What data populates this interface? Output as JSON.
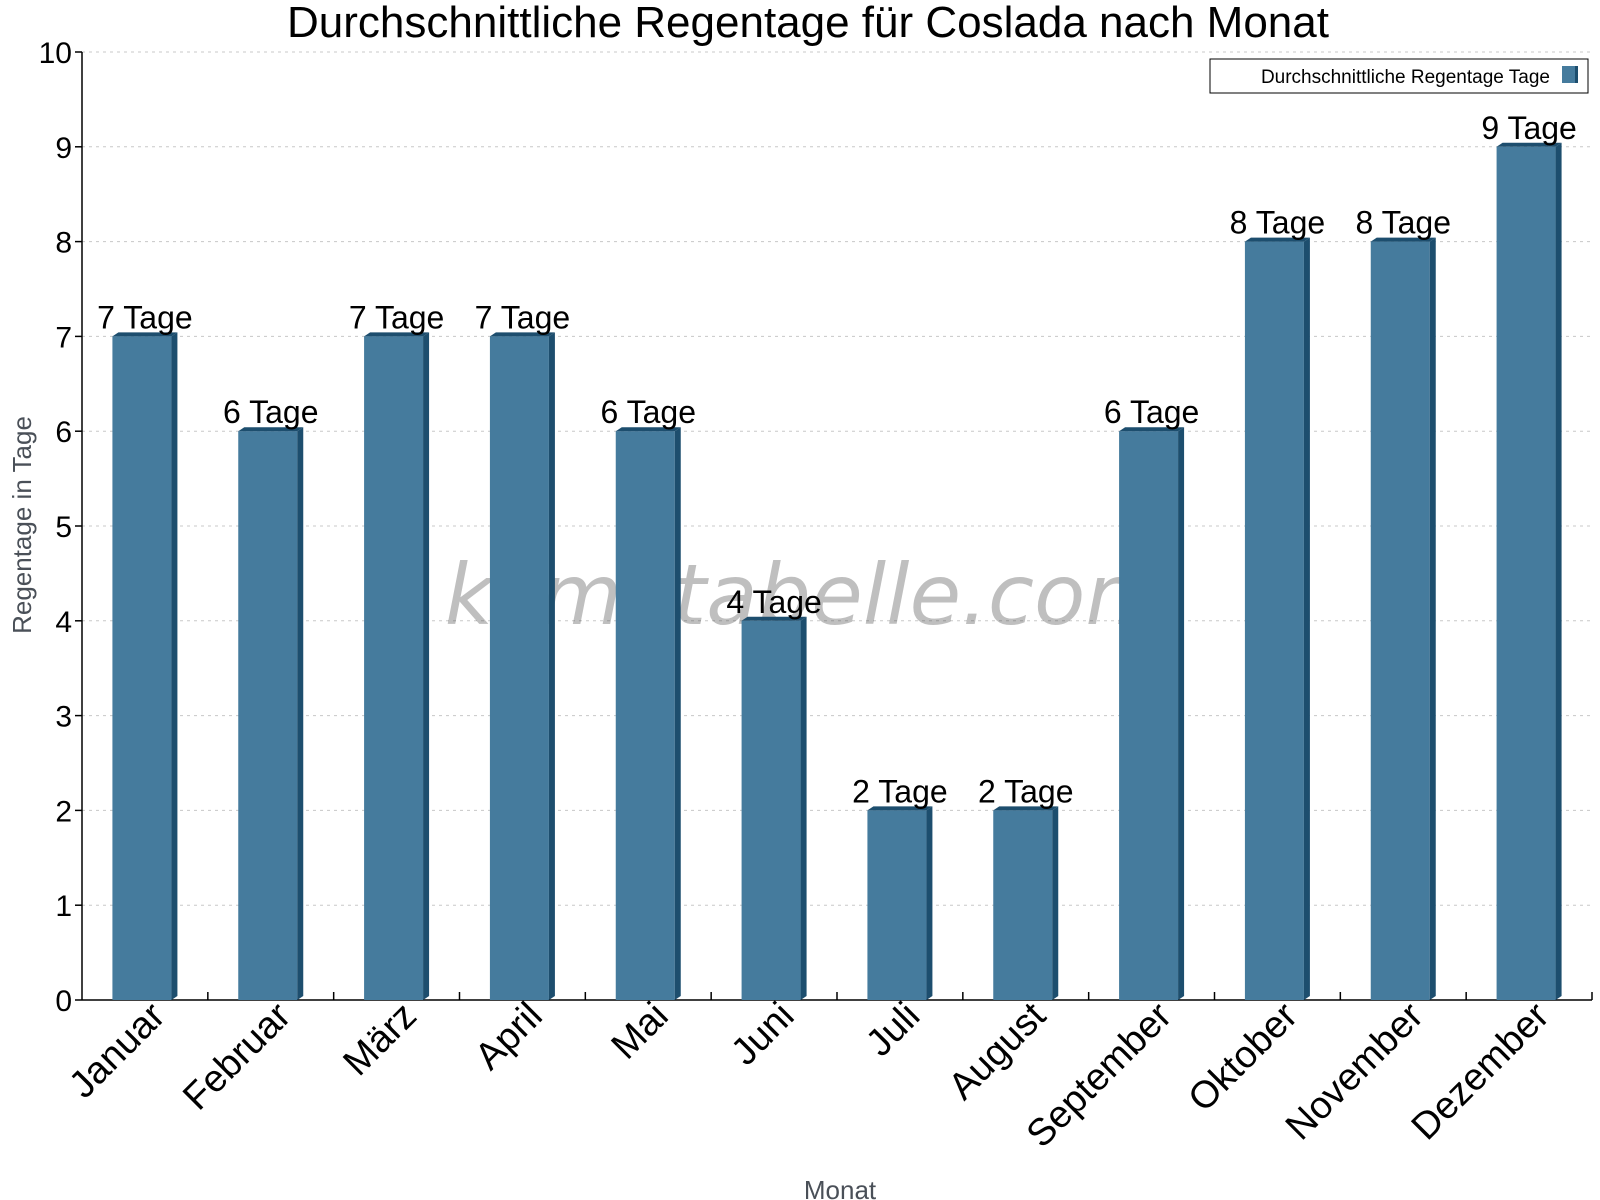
{
  "chart_data": {
    "type": "bar",
    "title": "Durchschnittliche Regentage für Coslada nach Monat",
    "xlabel": "Monat",
    "ylabel": "Regentage in Tage",
    "ylim": [
      0,
      10
    ],
    "yticks": [
      "0",
      "1",
      "2",
      "3",
      "4",
      "5",
      "6",
      "7",
      "8",
      "9",
      "10"
    ],
    "grid": true,
    "legend_position": "top-right",
    "categories": [
      "Januar",
      "Februar",
      "März",
      "April",
      "Mai",
      "Juni",
      "Juli",
      "August",
      "September",
      "Oktober",
      "November",
      "Dezember"
    ],
    "series": [
      {
        "name": "Durchschnittliche Regentage Tage",
        "values": [
          7,
          6,
          7,
          7,
          6,
          4,
          2,
          2,
          6,
          8,
          8,
          9
        ],
        "data_labels": [
          "7 Tage",
          "6 Tage",
          "7 Tage",
          "7 Tage",
          "6 Tage",
          "4 Tage",
          "2 Tage",
          "2 Tage",
          "6 Tage",
          "8 Tage",
          "8 Tage",
          "9 Tage"
        ],
        "color": "#457b9d",
        "side_color": "#1d4e6e"
      }
    ],
    "watermark": "klimatabelle.com"
  }
}
